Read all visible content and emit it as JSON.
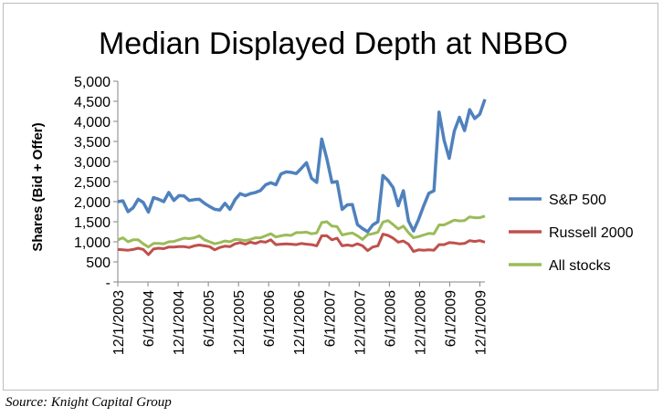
{
  "source_note": "Source:  Knight Capital Group",
  "chart_data": {
    "type": "line",
    "title": "Median Displayed Depth at NBBO",
    "xlabel": "",
    "ylabel": "Shares (Bid + Offer)",
    "ylim": [
      0,
      5000
    ],
    "y_ticks": [
      {
        "value": 0,
        "label": "-"
      },
      {
        "value": 500,
        "label": "500"
      },
      {
        "value": 1000,
        "label": "1,000"
      },
      {
        "value": 1500,
        "label": "1,500"
      },
      {
        "value": 2000,
        "label": "2,000"
      },
      {
        "value": 2500,
        "label": "2,500"
      },
      {
        "value": 3000,
        "label": "3,000"
      },
      {
        "value": 3500,
        "label": "3,500"
      },
      {
        "value": 4000,
        "label": "4,000"
      },
      {
        "value": 4500,
        "label": "4,500"
      },
      {
        "value": 5000,
        "label": "5,000"
      }
    ],
    "x_ticks": [
      "12/1/2003",
      "6/1/2004",
      "12/1/2004",
      "6/1/2005",
      "12/1/2005",
      "6/1/2006",
      "12/1/2006",
      "6/1/2007",
      "12/1/2007",
      "6/1/2008",
      "12/1/2008",
      "6/1/2009",
      "12/1/2009"
    ],
    "x_start": "12/1/2003",
    "x_end": "1/1/2010",
    "grid": false,
    "legend_position": "right",
    "series": [
      {
        "name": "S&P 500",
        "color": "#4f81bd",
        "values": [
          2000,
          2020,
          1750,
          1850,
          2060,
          1980,
          1740,
          2100,
          2060,
          2000,
          2230,
          2030,
          2150,
          2140,
          2030,
          2050,
          2060,
          1960,
          1880,
          1810,
          1790,
          1960,
          1810,
          2050,
          2200,
          2150,
          2200,
          2230,
          2280,
          2420,
          2470,
          2420,
          2690,
          2740,
          2730,
          2700,
          2830,
          2970,
          2580,
          2480,
          3560,
          3070,
          2480,
          2500,
          1810,
          1920,
          1930,
          1430,
          1330,
          1250,
          1420,
          1500,
          2650,
          2530,
          2350,
          1900,
          2270,
          1520,
          1270,
          1560,
          1900,
          2210,
          2270,
          4230,
          3530,
          3080,
          3760,
          4100,
          3770,
          4290,
          4070,
          4180,
          4550
        ]
      },
      {
        "name": "Russell 2000",
        "color": "#c0504d",
        "values": [
          810,
          800,
          790,
          810,
          840,
          810,
          680,
          820,
          840,
          830,
          870,
          870,
          880,
          880,
          860,
          900,
          920,
          900,
          880,
          800,
          860,
          890,
          880,
          950,
          980,
          940,
          990,
          960,
          1010,
          990,
          1050,
          930,
          940,
          950,
          940,
          930,
          960,
          940,
          930,
          900,
          1150,
          1150,
          1050,
          1090,
          900,
          920,
          900,
          950,
          900,
          780,
          870,
          900,
          1190,
          1160,
          1090,
          990,
          1020,
          940,
          760,
          800,
          790,
          800,
          790,
          930,
          930,
          980,
          970,
          950,
          960,
          1030,
          1010,
          1030,
          990
        ]
      },
      {
        "name": "All stocks",
        "color": "#9bbb59",
        "values": [
          1050,
          1100,
          1000,
          1050,
          1050,
          950,
          870,
          960,
          960,
          950,
          1000,
          1010,
          1050,
          1090,
          1080,
          1100,
          1150,
          1050,
          1000,
          950,
          980,
          1020,
          1000,
          1060,
          1050,
          1030,
          1060,
          1100,
          1100,
          1150,
          1200,
          1120,
          1150,
          1170,
          1160,
          1230,
          1230,
          1240,
          1200,
          1220,
          1480,
          1500,
          1390,
          1380,
          1170,
          1200,
          1220,
          1150,
          1060,
          1180,
          1200,
          1240,
          1490,
          1530,
          1430,
          1320,
          1390,
          1230,
          1100,
          1130,
          1170,
          1210,
          1200,
          1420,
          1420,
          1480,
          1540,
          1520,
          1530,
          1620,
          1600,
          1600,
          1640
        ]
      }
    ]
  }
}
